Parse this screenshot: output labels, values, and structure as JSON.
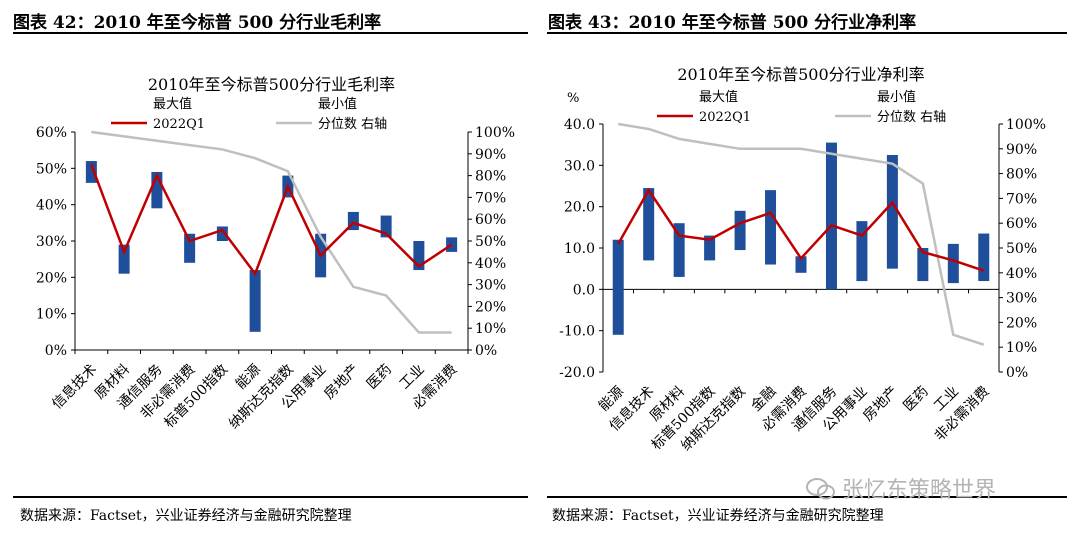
{
  "figures": [
    {
      "title": "图表 42：2010 年至今标普 500 分行业毛利率",
      "source": "数据来源：Factset，兴业证券经济与金融研究院整理"
    },
    {
      "title": "图表 43：2010 年至今标普 500 分行业净利率",
      "source": "数据来源：Factset，兴业证券经济与金融研究院整理"
    }
  ],
  "watermark": "张忆东策略世界",
  "chart_data": [
    {
      "type": "bar",
      "title": "2010年至今标普500分行业毛利率",
      "legend": {
        "max": "最大值",
        "min": "最小值",
        "q": "2022Q1",
        "pct": "分位数 右轴"
      },
      "unit": "",
      "categories": [
        "信息技术",
        "原材料",
        "通信服务",
        "非必需消费",
        "标普500指数",
        "能源",
        "纳斯达克指数",
        "公用事业",
        "房地产",
        "医药",
        "工业",
        "必需消费"
      ],
      "ylim": [
        0,
        60
      ],
      "yticks": [
        "0%",
        "10%",
        "20%",
        "30%",
        "40%",
        "50%",
        "60%"
      ],
      "y2ticks": [
        "0%",
        "10%",
        "20%",
        "30%",
        "40%",
        "50%",
        "60%",
        "70%",
        "80%",
        "90%",
        "100%"
      ],
      "series": [
        {
          "name": "最大值",
          "values": [
            52,
            29,
            49,
            32,
            34,
            22,
            48,
            32,
            38,
            37,
            30,
            31
          ]
        },
        {
          "name": "最小值",
          "values": [
            46,
            21,
            39,
            24,
            30,
            5,
            42,
            20,
            33,
            31,
            22,
            27
          ]
        },
        {
          "name": "2022Q1",
          "values": [
            51,
            27,
            48,
            30,
            33,
            21,
            45,
            26,
            35,
            32,
            23,
            29
          ]
        },
        {
          "name": "分位数 右轴",
          "values": [
            100,
            98,
            96,
            94,
            92,
            88,
            82,
            52,
            29,
            25,
            8,
            8
          ]
        }
      ]
    },
    {
      "type": "bar",
      "title": "2010年至今标普500分行业净利率",
      "legend": {
        "max": "最大值",
        "min": "最小值",
        "q": "2022Q1",
        "pct": "分位数 右轴"
      },
      "unit": "%",
      "categories": [
        "能源",
        "信息技术",
        "原材料",
        "标普500指数",
        "纳斯达克指数",
        "金融",
        "必需消费",
        "通信服务",
        "公用事业",
        "房地产",
        "医药",
        "工业",
        "非必需消费"
      ],
      "ylim": [
        -20,
        40
      ],
      "yticks": [
        "-20.0",
        "-10.0",
        "0.0",
        "10.0",
        "20.0",
        "30.0",
        "40.0"
      ],
      "y2ticks": [
        "0%",
        "10%",
        "20%",
        "30%",
        "40%",
        "50%",
        "60%",
        "70%",
        "80%",
        "90%",
        "100%"
      ],
      "series": [
        {
          "name": "最大值",
          "values": [
            12,
            24.5,
            16,
            13,
            19,
            24,
            8,
            35.5,
            16.5,
            32.5,
            10,
            11,
            13.5
          ]
        },
        {
          "name": "最小值",
          "values": [
            -11,
            7,
            3,
            7,
            9.5,
            6,
            4,
            0,
            2,
            5,
            2,
            1.5,
            2
          ]
        },
        {
          "name": "2022Q1",
          "values": [
            11,
            24,
            13,
            12,
            16,
            18.5,
            7.5,
            15.5,
            13,
            21,
            9,
            7,
            4.5
          ]
        },
        {
          "name": "分位数 右轴",
          "values": [
            100,
            98,
            94,
            92,
            90,
            90,
            90,
            88,
            86,
            84,
            76,
            15,
            11
          ]
        }
      ]
    }
  ]
}
